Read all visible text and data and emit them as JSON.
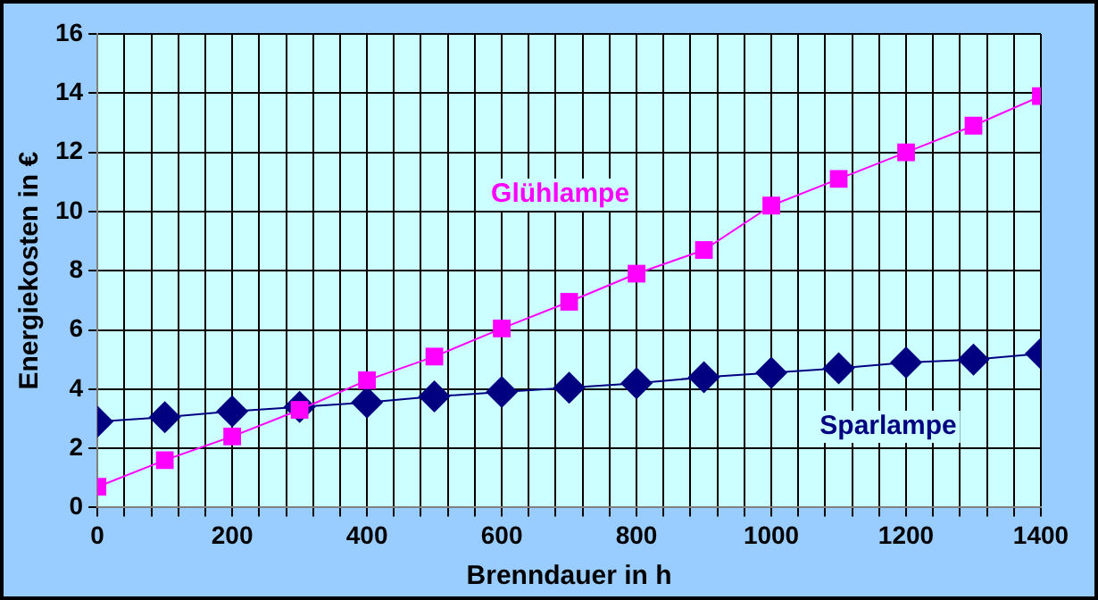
{
  "chart_data": {
    "type": "line",
    "xlabel": "Brenndauer in h",
    "ylabel": "Energiekosten in €",
    "x": [
      0,
      100,
      200,
      300,
      400,
      500,
      600,
      700,
      800,
      900,
      1000,
      1100,
      1200,
      1300,
      1400
    ],
    "series": [
      {
        "name": "Glühlampe",
        "color": "#ff00ff",
        "marker": "square",
        "values": [
          0.7,
          1.6,
          2.4,
          3.3,
          4.3,
          5.1,
          6.05,
          6.95,
          7.9,
          8.7,
          10.2,
          11.1,
          12.0,
          12.9,
          13.9
        ]
      },
      {
        "name": "Sparlampe",
        "color": "#000080",
        "marker": "diamond",
        "values": [
          2.9,
          3.05,
          3.25,
          3.4,
          3.55,
          3.75,
          3.9,
          4.05,
          4.2,
          4.4,
          4.55,
          4.7,
          4.9,
          5.0,
          5.2
        ]
      }
    ],
    "xlim": [
      0,
      1400
    ],
    "xticks": [
      0,
      {
        "value": 40,
        "label": null
      },
      {
        "value": 80,
        "label": null
      },
      {
        "value": 120,
        "label": null
      },
      {
        "value": 160,
        "label": null
      },
      200,
      {
        "value": 240,
        "label": null
      },
      {
        "value": 280,
        "label": null
      },
      {
        "value": 320,
        "label": null
      },
      {
        "value": 360,
        "label": null
      },
      400,
      {
        "value": 440,
        "label": null
      },
      {
        "value": 480,
        "label": null
      },
      {
        "value": 520,
        "label": null
      },
      {
        "value": 560,
        "label": null
      },
      600,
      {
        "value": 640,
        "label": null
      },
      {
        "value": 680,
        "label": null
      },
      {
        "value": 720,
        "label": null
      },
      {
        "value": 760,
        "label": null
      },
      800,
      {
        "value": 840,
        "label": null
      },
      {
        "value": 880,
        "label": null
      },
      {
        "value": 920,
        "label": null
      },
      {
        "value": 960,
        "label": null
      },
      1000,
      {
        "value": 1040,
        "label": null
      },
      {
        "value": 1080,
        "label": null
      },
      {
        "value": 1120,
        "label": null
      },
      {
        "value": 1160,
        "label": null
      },
      1200,
      {
        "value": 1240,
        "label": null
      },
      {
        "value": 1280,
        "label": null
      },
      {
        "value": 1320,
        "label": null
      },
      {
        "value": 1360,
        "label": null
      },
      1400
    ],
    "ylim": [
      0,
      16
    ],
    "yticks": [
      0,
      2,
      4,
      6,
      8,
      10,
      12,
      14,
      16
    ],
    "grid": true,
    "legend": false,
    "line_style": "solid"
  }
}
